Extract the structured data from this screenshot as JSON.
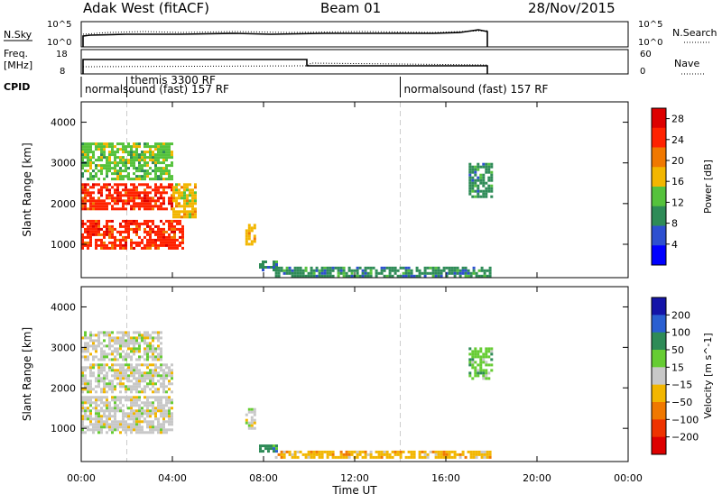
{
  "header": {
    "station": "Adak West (fitACF)",
    "beam": "Beam 01",
    "date": "28/Nov/2015"
  },
  "summary": {
    "nsky_label": "N.Sky",
    "nsearch_label": "N.Search",
    "freq_label_1": "Freq.",
    "freq_label_2": "[MHz]",
    "nave_label": "Nave",
    "cpid_label": "CPID",
    "left_ticks_nsky": [
      "10^5",
      "10^0"
    ],
    "right_ticks_nsky": [
      "10^5",
      "10^0"
    ],
    "left_ticks_freq": [
      "18",
      "8"
    ],
    "right_ticks_nave": [
      "60",
      "0"
    ],
    "cpid_segments": [
      {
        "label": "normalsound (fast) 157 RF",
        "start_h": 0
      },
      {
        "label": "themis 3300 RF",
        "start_h": 2
      },
      {
        "label": "normalsound (fast) 157 RF",
        "start_h": 14
      }
    ]
  },
  "colors": {
    "power": [
      "#0000ff",
      "#2d4fd0",
      "#2e8b57",
      "#55c23c",
      "#f2b600",
      "#f07800",
      "#ff2200",
      "#dd0000"
    ],
    "velocity": [
      "#1414a8",
      "#2a5fd1",
      "#2e8b57",
      "#66cc33",
      "#c8c8c8",
      "#f2b600",
      "#f07800",
      "#ee3300",
      "#dd0000"
    ]
  },
  "chart_data": [
    {
      "type": "heatmap",
      "name": "power",
      "x_ticks": [
        "00:00",
        "04:00",
        "08:00",
        "12:00",
        "16:00",
        "20:00",
        "00:00"
      ],
      "xlim_hours": [
        0,
        24
      ],
      "ylabel": "Slant Range [km]",
      "y_ticks": [
        "1000",
        "2000",
        "3000",
        "4000"
      ],
      "ylim": [
        180,
        4500
      ],
      "colorbar_label": "Power [dB]",
      "colorbar_ticks": [
        "4",
        "8",
        "12",
        "16",
        "20",
        "24",
        "28"
      ],
      "clim": [
        0,
        30
      ],
      "regions": [
        {
          "t": [
            0.0,
            4.5
          ],
          "r": [
            900,
            1600
          ],
          "value": 26
        },
        {
          "t": [
            0.0,
            4.0
          ],
          "r": [
            1900,
            2500
          ],
          "value": 24
        },
        {
          "t": [
            0.0,
            4.0
          ],
          "r": [
            2600,
            3500
          ],
          "value": 14
        },
        {
          "t": [
            4.0,
            5.0
          ],
          "r": [
            1700,
            2500
          ],
          "value": 18
        },
        {
          "t": [
            7.2,
            7.6
          ],
          "r": [
            1000,
            1500
          ],
          "value": 16
        },
        {
          "t": [
            7.8,
            8.6
          ],
          "r": [
            400,
            600
          ],
          "value": 10
        },
        {
          "t": [
            8.5,
            18.0
          ],
          "r": [
            250,
            450
          ],
          "value": 10
        },
        {
          "t": [
            17.0,
            18.0
          ],
          "r": [
            2200,
            3000
          ],
          "value": 8
        }
      ]
    },
    {
      "type": "heatmap",
      "name": "velocity",
      "x_ticks": [
        "00:00",
        "04:00",
        "08:00",
        "12:00",
        "16:00",
        "20:00",
        "00:00"
      ],
      "xlim_hours": [
        0,
        24
      ],
      "xlabel": "Time UT",
      "ylabel": "Slant Range [km]",
      "y_ticks": [
        "1000",
        "2000",
        "3000",
        "4000"
      ],
      "ylim": [
        180,
        4500
      ],
      "colorbar_label": "Velocity [m s^-1]",
      "colorbar_ticks": [
        "200",
        "100",
        "50",
        "15",
        "-15",
        "-50",
        "-100",
        "-200"
      ],
      "clim": [
        -250,
        250
      ],
      "regions": [
        {
          "t": [
            0.0,
            4.0
          ],
          "r": [
            900,
            1800
          ],
          "value": 0
        },
        {
          "t": [
            0.0,
            4.0
          ],
          "r": [
            1900,
            2600
          ],
          "value": 0
        },
        {
          "t": [
            0.0,
            3.5
          ],
          "r": [
            2700,
            3400
          ],
          "value": 0
        },
        {
          "t": [
            7.2,
            7.6
          ],
          "r": [
            1000,
            1500
          ],
          "value": 0
        },
        {
          "t": [
            7.8,
            8.6
          ],
          "r": [
            400,
            600
          ],
          "value": 60
        },
        {
          "t": [
            8.5,
            18.0
          ],
          "r": [
            250,
            450
          ],
          "value": -40
        },
        {
          "t": [
            17.0,
            18.0
          ],
          "r": [
            2200,
            3000
          ],
          "value": 20
        }
      ]
    }
  ]
}
